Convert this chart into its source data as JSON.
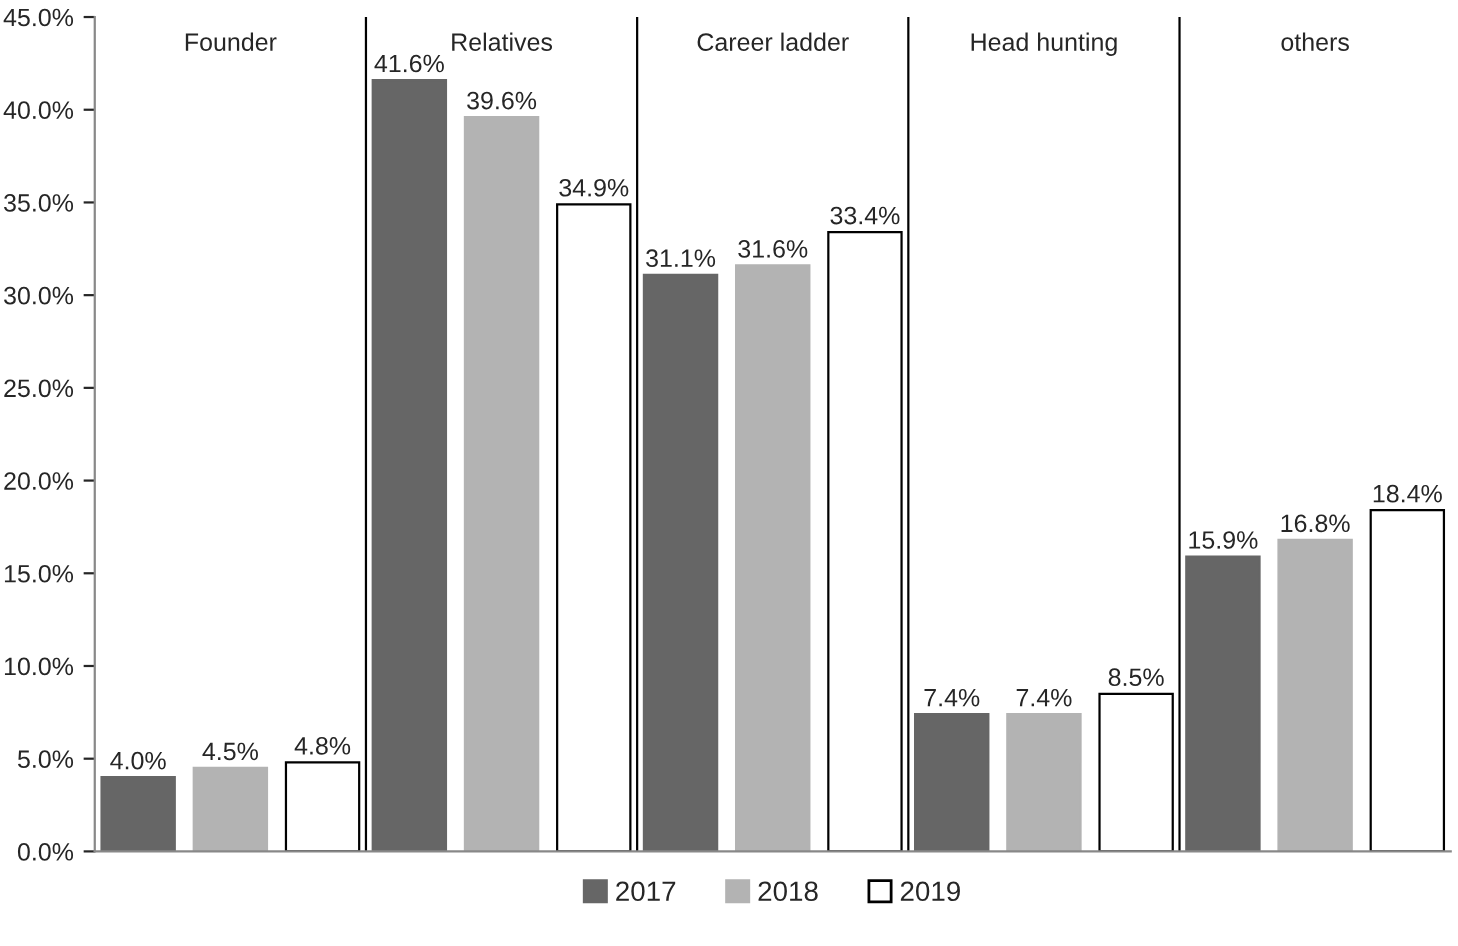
{
  "chart_data": {
    "type": "bar",
    "categories": [
      "Founder",
      "Relatives",
      "Career ladder",
      "Head hunting",
      "others"
    ],
    "series": [
      {
        "name": "2017",
        "color": "#666666",
        "values": [
          4.0,
          41.6,
          31.1,
          7.4,
          15.9
        ],
        "value_labels": [
          "4.0%",
          "41.6%",
          "31.1%",
          "7.4%",
          "15.9%"
        ]
      },
      {
        "name": "2018",
        "color": "#b3b3b3",
        "values": [
          4.5,
          39.6,
          31.6,
          7.4,
          16.8
        ],
        "value_labels": [
          "4.5%",
          "39.6%",
          "31.6%",
          "7.4%",
          "16.8%"
        ]
      },
      {
        "name": "2019",
        "color": "#ffffff",
        "values": [
          4.8,
          34.9,
          33.4,
          8.5,
          18.4
        ],
        "value_labels": [
          "4.8%",
          "34.9%",
          "33.4%",
          "8.5%",
          "18.4%"
        ]
      }
    ],
    "ylim": [
      0,
      45
    ],
    "yticks": [
      {
        "value": 0,
        "label": "0.0%"
      },
      {
        "value": 5,
        "label": "5.0%"
      },
      {
        "value": 10,
        "label": "10.0%"
      },
      {
        "value": 15,
        "label": "15.0%"
      },
      {
        "value": 20,
        "label": "20.0%"
      },
      {
        "value": 25,
        "label": "25.0%"
      },
      {
        "value": 30,
        "label": "30.0%"
      },
      {
        "value": 35,
        "label": "35.0%"
      },
      {
        "value": 40,
        "label": "40.0%"
      },
      {
        "value": 45,
        "label": "45.0%"
      }
    ],
    "grid": "x",
    "legend": "bottom"
  }
}
